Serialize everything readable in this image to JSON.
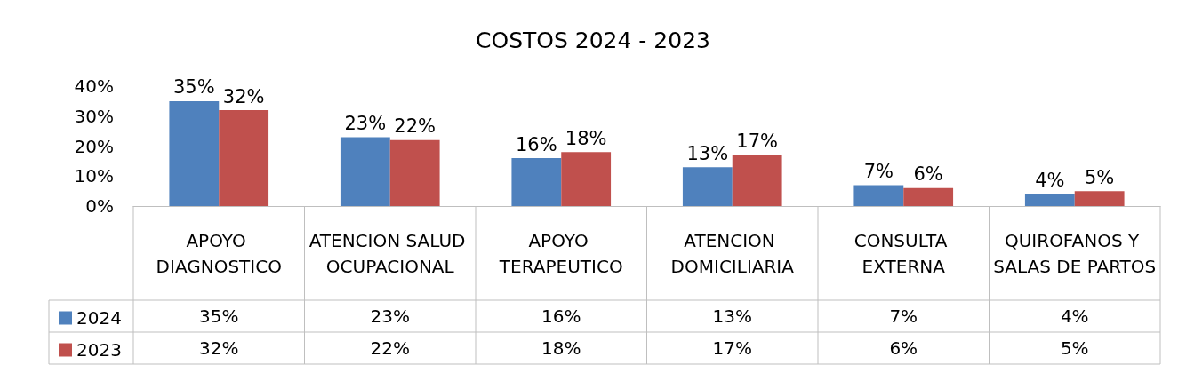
{
  "chart_data": {
    "type": "bar",
    "title": "COSTOS 2024 - 2023",
    "categories": [
      "APOYO DIAGNOSTICO",
      "ATENCION SALUD OCUPACIONAL",
      "APOYO TERAPEUTICO",
      "ATENCION DOMICILIARIA",
      "CONSULTA EXTERNA",
      "QUIROFANOS Y SALAS DE PARTOS"
    ],
    "series": [
      {
        "name": "2024",
        "color": "#4f81bd",
        "values": [
          35,
          23,
          16,
          13,
          7,
          4
        ],
        "value_labels": [
          "35%",
          "23%",
          "16%",
          "13%",
          "7%",
          "4%"
        ]
      },
      {
        "name": "2023",
        "color": "#c0504d",
        "values": [
          32,
          22,
          18,
          17,
          6,
          5
        ],
        "value_labels": [
          "32%",
          "22%",
          "18%",
          "17%",
          "6%",
          "5%"
        ]
      }
    ],
    "ylim": [
      0,
      40
    ],
    "yticks": [
      {
        "value": 0,
        "label": "0%"
      },
      {
        "value": 10,
        "label": "10%"
      },
      {
        "value": 20,
        "label": "20%"
      },
      {
        "value": 30,
        "label": "30%"
      },
      {
        "value": 40,
        "label": "40%"
      }
    ],
    "grid": false,
    "legend": "bottom left"
  }
}
